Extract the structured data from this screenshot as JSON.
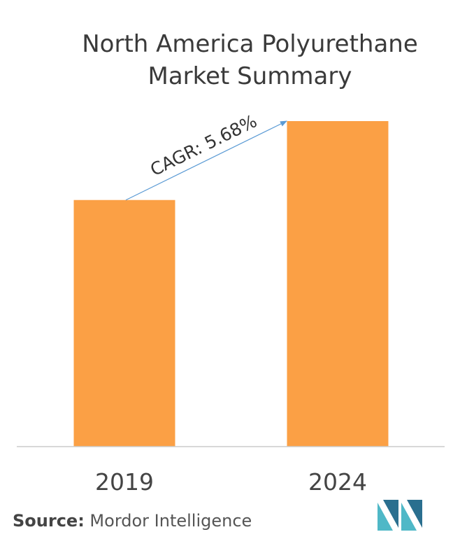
{
  "chart_data": {
    "type": "bar",
    "title_lines": [
      "North America Polyurethane",
      "Market Summary"
    ],
    "categories": [
      "2019",
      "2024"
    ],
    "values": [
      100,
      132
    ],
    "ylim": [
      0,
      132
    ],
    "annotation": "CAGR: 5.68%",
    "grid": false,
    "legend": "none"
  },
  "colors": {
    "bar": "#FBA045",
    "arrow": "#5B9BD5",
    "axis": "#cccccc",
    "logo_dark": "#2A6F8F",
    "logo_light": "#4FB8C7"
  },
  "source": {
    "label": "Source:",
    "text": " Mordor Intelligence"
  },
  "logo": {
    "icon": "mordor-intelligence-logo"
  }
}
